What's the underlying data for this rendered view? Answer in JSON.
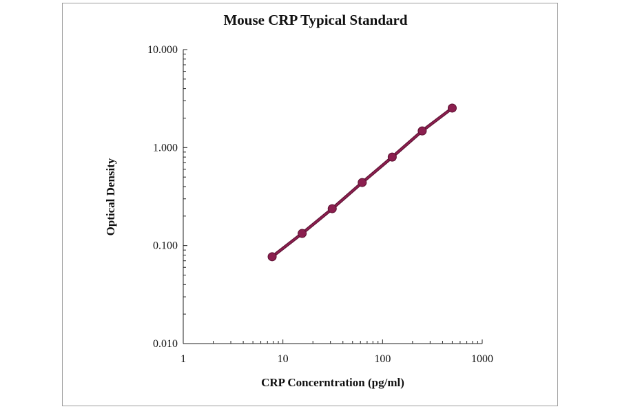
{
  "chart_data": {
    "type": "line",
    "title": "Mouse CRP Typical Standard",
    "xlabel": "CRP Concerntration (pg/ml)",
    "ylabel": "Optical Density",
    "x_scale": "log",
    "y_scale": "log",
    "xlim": [
      1,
      1000
    ],
    "ylim": [
      0.01,
      10
    ],
    "x_ticks": [
      "1",
      "10",
      "100",
      "1000"
    ],
    "y_ticks": [
      "0.010",
      "0.100",
      "1.000",
      "10.000"
    ],
    "grid": false,
    "legend": "none",
    "series": [
      {
        "x": [
          7.8,
          15.6,
          31.25,
          62.5,
          125,
          250,
          500
        ],
        "y": [
          0.077,
          0.133,
          0.238,
          0.44,
          0.8,
          1.48,
          2.53
        ],
        "markers": true,
        "color": "#8b1f4f"
      }
    ]
  }
}
